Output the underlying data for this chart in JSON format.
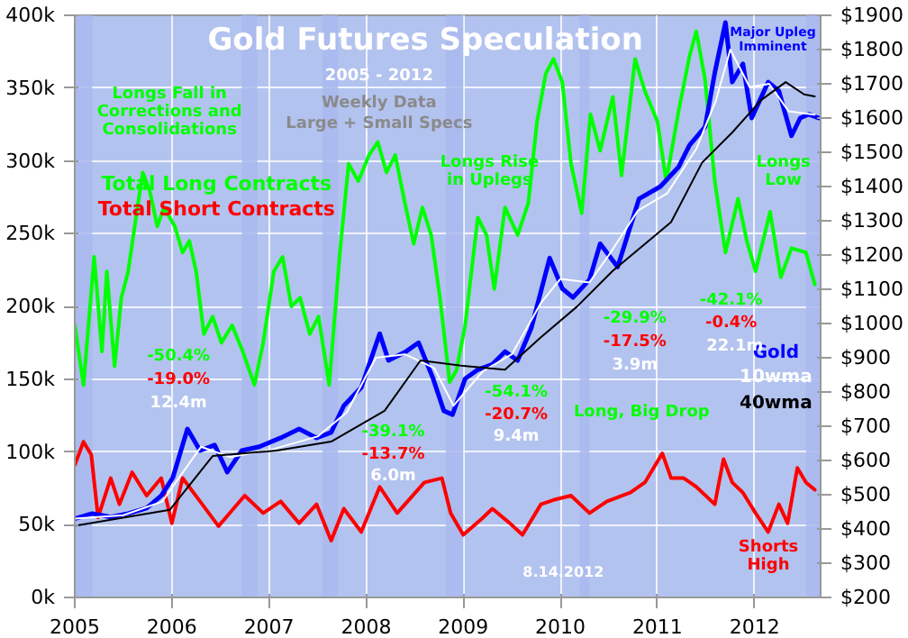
{
  "chart_data": {
    "type": "line",
    "title": "Gold Futures Speculation",
    "subtitle": "2005 - 2012",
    "xlim": [
      2005,
      2012.68
    ],
    "xticks": [
      2005,
      2006,
      2007,
      2008,
      2009,
      2010,
      2011,
      2012
    ],
    "ylim": [
      0,
      400
    ],
    "yticks": [
      {
        "value": 0,
        "label": "0k"
      },
      {
        "value": 50,
        "label": "50k"
      },
      {
        "value": 100,
        "label": "100k"
      },
      {
        "value": 150,
        "label": "150k"
      },
      {
        "value": 200,
        "label": "200k"
      },
      {
        "value": 250,
        "label": "250k"
      },
      {
        "value": 300,
        "label": "300k"
      },
      {
        "value": 350,
        "label": "350k"
      },
      {
        "value": 400,
        "label": "400k"
      }
    ],
    "y2lim": [
      200,
      1900
    ],
    "y2ticks": [
      {
        "value": 200,
        "label": "$200"
      },
      {
        "value": 300,
        "label": "$300"
      },
      {
        "value": 400,
        "label": "$400"
      },
      {
        "value": 500,
        "label": "$500"
      },
      {
        "value": 600,
        "label": "$600"
      },
      {
        "value": 700,
        "label": "$700"
      },
      {
        "value": 800,
        "label": "$800"
      },
      {
        "value": 900,
        "label": "$900"
      },
      {
        "value": 1000,
        "label": "$1000"
      },
      {
        "value": 1100,
        "label": "$1100"
      },
      {
        "value": 1200,
        "label": "$1200"
      },
      {
        "value": 1300,
        "label": "$1300"
      },
      {
        "value": 1400,
        "label": "$1400"
      },
      {
        "value": 1500,
        "label": "$1500"
      },
      {
        "value": 1600,
        "label": "$1600"
      },
      {
        "value": 1700,
        "label": "$1700"
      },
      {
        "value": 1800,
        "label": "$1800"
      },
      {
        "value": 1900,
        "label": "$1900"
      }
    ],
    "grid": true,
    "bands": [
      {
        "axis": "x",
        "from": 2005.0,
        "to": 2005.18,
        "color": "#a9b9ef"
      },
      {
        "axis": "x",
        "from": 2006.72,
        "to": 2006.88,
        "color": "#a9b9ef"
      },
      {
        "axis": "x",
        "from": 2007.55,
        "to": 2007.71,
        "color": "#a9b9ef"
      },
      {
        "axis": "x",
        "from": 2008.82,
        "to": 2009.0,
        "color": "#a9b9ef"
      },
      {
        "axis": "x",
        "from": 2010.2,
        "to": 2010.3,
        "color": "#a9b9ef"
      },
      {
        "axis": "x",
        "from": 2012.53,
        "to": 2012.68,
        "color": "#a9b9ef"
      }
    ],
    "series": [
      {
        "name": "Total Long Contracts",
        "color": "#00ff00",
        "x": [
          2005.0,
          2005.09,
          2005.2,
          2005.28,
          2005.33,
          2005.41,
          2005.48,
          2005.55,
          2005.63,
          2005.7,
          2005.77,
          2005.85,
          2005.92,
          2006.03,
          2006.11,
          2006.18,
          2006.25,
          2006.33,
          2006.42,
          2006.51,
          2006.62,
          2006.73,
          2006.85,
          2006.94,
          2007.05,
          2007.14,
          2007.23,
          2007.32,
          2007.42,
          2007.51,
          2007.62,
          2007.73,
          2007.82,
          2007.92,
          2008.03,
          2008.12,
          2008.21,
          2008.3,
          2008.39,
          2008.49,
          2008.58,
          2008.67,
          2008.76,
          2008.86,
          2008.93,
          2009.02,
          2009.15,
          2009.24,
          2009.32,
          2009.43,
          2009.56,
          2009.67,
          2009.76,
          2009.85,
          2009.93,
          2010.02,
          2010.11,
          2010.22,
          2010.31,
          2010.41,
          2010.54,
          2010.63,
          2010.77,
          2010.87,
          2011.0,
          2011.09,
          2011.22,
          2011.33,
          2011.4,
          2011.49,
          2011.59,
          2011.7,
          2011.83,
          2011.92,
          2012.01,
          2012.16,
          2012.27,
          2012.38,
          2012.53,
          2012.62
        ],
        "values": [
          187,
          146,
          234,
          169,
          224,
          159,
          206,
          224,
          261,
          292,
          280,
          255,
          268,
          255,
          237,
          245,
          224,
          181,
          193,
          175,
          187,
          169,
          146,
          175,
          224,
          234,
          200,
          206,
          181,
          193,
          146,
          237,
          298,
          286,
          304,
          313,
          292,
          304,
          274,
          243,
          268,
          249,
          206,
          148,
          156,
          187,
          261,
          249,
          212,
          268,
          249,
          271,
          327,
          360,
          370,
          354,
          298,
          264,
          332,
          307,
          344,
          290,
          370,
          348,
          327,
          286,
          335,
          372,
          389,
          356,
          286,
          237,
          274,
          245,
          224,
          265,
          220,
          240,
          237,
          215
        ]
      },
      {
        "name": "Total Short Contracts",
        "color": "#ff0000",
        "x": [
          2005.0,
          2005.09,
          2005.17,
          2005.24,
          2005.37,
          2005.46,
          2005.59,
          2005.74,
          2005.89,
          2006.0,
          2006.11,
          2006.29,
          2006.48,
          2006.75,
          2006.94,
          2007.12,
          2007.31,
          2007.49,
          2007.64,
          2007.77,
          2007.95,
          2008.14,
          2008.32,
          2008.6,
          2008.78,
          2008.87,
          2009.0,
          2009.19,
          2009.3,
          2009.48,
          2009.61,
          2009.8,
          2009.93,
          2010.11,
          2010.3,
          2010.48,
          2010.72,
          2010.87,
          2011.05,
          2011.14,
          2011.27,
          2011.4,
          2011.59,
          2011.68,
          2011.77,
          2011.88,
          2012.01,
          2012.14,
          2012.25,
          2012.34,
          2012.44,
          2012.53,
          2012.62
        ],
        "values": [
          91,
          107,
          98,
          55,
          82,
          64,
          86,
          70,
          82,
          51,
          82,
          66,
          49,
          70,
          58,
          66,
          51,
          64,
          39,
          61,
          45,
          76,
          58,
          79,
          82,
          58,
          43,
          54,
          61,
          51,
          43,
          64,
          67,
          70,
          58,
          66,
          72,
          79,
          99,
          82,
          82,
          76,
          64,
          95,
          79,
          72,
          58,
          45,
          64,
          51,
          89,
          79,
          74
        ]
      },
      {
        "name": "Gold",
        "color": "#0000ff",
        "axis": "y2",
        "x": [
          2005.0,
          2005.18,
          2005.37,
          2005.55,
          2005.74,
          2005.89,
          2006.01,
          2006.16,
          2006.29,
          2006.44,
          2006.57,
          2006.72,
          2006.9,
          2007.12,
          2007.31,
          2007.49,
          2007.64,
          2007.77,
          2007.95,
          2008.14,
          2008.23,
          2008.41,
          2008.54,
          2008.69,
          2008.8,
          2008.89,
          2009.02,
          2009.15,
          2009.3,
          2009.43,
          2009.56,
          2009.7,
          2009.89,
          2010.02,
          2010.13,
          2010.3,
          2010.41,
          2010.59,
          2010.81,
          2011.03,
          2011.22,
          2011.33,
          2011.49,
          2011.59,
          2011.7,
          2011.77,
          2011.88,
          2011.97,
          2012.14,
          2012.25,
          2012.38,
          2012.47,
          2012.56,
          2012.66
        ],
        "values": [
          430,
          445,
          435,
          445,
          461,
          497,
          550,
          692,
          629,
          645,
          566,
          629,
          640,
          666,
          692,
          666,
          682,
          760,
          813,
          970,
          892,
          918,
          944,
          839,
          745,
          734,
          839,
          865,
          881,
          918,
          892,
          986,
          1191,
          1102,
          1076,
          1128,
          1233,
          1165,
          1364,
          1400,
          1458,
          1521,
          1574,
          1732,
          1879,
          1705,
          1758,
          1600,
          1705,
          1679,
          1548,
          1600,
          1611,
          1600
        ]
      },
      {
        "name": "10wma",
        "color": "#ffffff",
        "axis": "y2",
        "x": [
          2005.0,
          2005.5,
          2005.9,
          2006.3,
          2006.6,
          2007.0,
          2007.5,
          2007.8,
          2008.1,
          2008.4,
          2008.7,
          2008.9,
          2009.2,
          2009.5,
          2009.8,
          2010.0,
          2010.3,
          2010.5,
          2010.8,
          2011.1,
          2011.4,
          2011.6,
          2011.75,
          2011.95,
          2012.15,
          2012.35,
          2012.62
        ],
        "values": [
          430,
          440,
          480,
          640,
          610,
          630,
          670,
          740,
          900,
          910,
          870,
          760,
          860,
          910,
          1060,
          1130,
          1120,
          1200,
          1330,
          1380,
          1510,
          1650,
          1800,
          1690,
          1700,
          1620,
          1610
        ]
      },
      {
        "name": "40wma",
        "color": "#000000",
        "axis": "y2",
        "x": [
          2005.0,
          2005.98,
          2006.42,
          2007.08,
          2007.64,
          2008.19,
          2008.56,
          2009.0,
          2009.43,
          2009.8,
          2010.17,
          2010.54,
          2011.14,
          2011.46,
          2011.77,
          2012.07,
          2012.32,
          2012.51,
          2012.62
        ],
        "values": [
          409,
          456,
          613,
          629,
          655,
          745,
          892,
          876,
          865,
          960,
          1049,
          1154,
          1296,
          1470,
          1558,
          1653,
          1705,
          1669,
          1663
        ]
      }
    ],
    "annotations": [
      "Weekly Data",
      "Large + Small Specs",
      "Longs Fall in\nCorrections and\nConsolidations",
      "Longs Rise\nin Uplegs",
      "-50.4%",
      "-19.0%",
      "12.4m",
      "-39.1%",
      "-13.7%",
      "6.0m",
      "-54.1%",
      "-20.7%",
      "9.4m",
      "-29.9%",
      "-17.5%",
      "3.9m",
      "-42.1%",
      "-0.4%",
      "22.1m",
      "Long, Big Drop",
      "Major Upleg\nImminent",
      "Longs\nLow",
      "Shorts\nHigh",
      "8.14.2012"
    ]
  }
}
